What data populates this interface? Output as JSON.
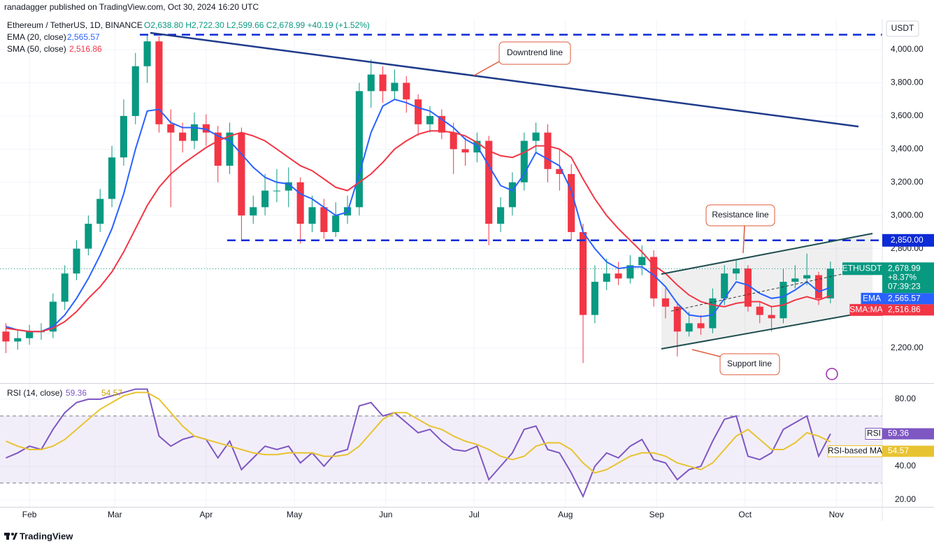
{
  "header": {
    "publisher": "ranadagger published on TradingView.com, Oct 30, 2024 16:20 UTC",
    "brand": "TradingView"
  },
  "chart_data": [
    {
      "type": "candlestick",
      "title": "Ethereum / TetherUS, 1D, BINANCE",
      "ohlc_label": "O2,638.80 H2,722.30 L2,599.66 C2,678.99 +40.19 (+1.52%)",
      "currency": "USDT",
      "categories": [
        null,
        null,
        null,
        null,
        null,
        null,
        null,
        null,
        null,
        null,
        null,
        null,
        null,
        null,
        null,
        null,
        null,
        null,
        null,
        null,
        null,
        null,
        null,
        null,
        null,
        null,
        null,
        null,
        null,
        null,
        null,
        null,
        null,
        null,
        null,
        null,
        null,
        null,
        null,
        null,
        null,
        null,
        null,
        null,
        null,
        null,
        null,
        null,
        null,
        null,
        null,
        null,
        null,
        null,
        null,
        null,
        null,
        null,
        null,
        null,
        null,
        null,
        null,
        null,
        null,
        null,
        null,
        null,
        null,
        null,
        null
      ],
      "open": [
        2300,
        2240,
        2260,
        2300,
        2300,
        2480,
        2650,
        2800,
        2950,
        3100,
        3350,
        3600,
        3900,
        4050,
        3550,
        3500,
        3450,
        3550,
        3500,
        3300,
        3500,
        3000,
        3050,
        3150,
        3150,
        3200,
        2950,
        3050,
        2900,
        3000,
        3050,
        3750,
        3850,
        3750,
        3800,
        3700,
        3550,
        3600,
        3500,
        3400,
        3380,
        3450,
        2950,
        3050,
        3200,
        3450,
        3500,
        3280,
        3250,
        2900,
        2400,
        2600,
        2650,
        2620,
        2700,
        2750,
        2500,
        2450,
        2300,
        2350,
        2320,
        2500,
        2650,
        2680,
        2450,
        2400,
        2380,
        2600,
        2620,
        2640,
        2500
      ],
      "high": [
        2350,
        2310,
        2340,
        2350,
        2530,
        2700,
        2850,
        3000,
        3160,
        3420,
        3700,
        3980,
        4090,
        4080,
        3640,
        3560,
        3620,
        3610,
        3540,
        3560,
        3530,
        3120,
        3250,
        3280,
        3290,
        3230,
        3120,
        3100,
        3080,
        3120,
        3800,
        3940,
        3900,
        3880,
        3840,
        3730,
        3660,
        3640,
        3560,
        3470,
        3500,
        3480,
        3110,
        3260,
        3500,
        3560,
        3550,
        3400,
        3310,
        2950,
        2700,
        2740,
        2720,
        2760,
        2820,
        2790,
        2560,
        2480,
        2420,
        2400,
        2560,
        2700,
        2730,
        2700,
        2480,
        2450,
        2680,
        2700,
        2770,
        2660,
        2722.3
      ],
      "low": [
        2170,
        2190,
        2220,
        2250,
        2260,
        2430,
        2610,
        2760,
        2900,
        3050,
        3300,
        3550,
        3800,
        3500,
        3050,
        3380,
        3400,
        3420,
        3200,
        3250,
        2850,
        2950,
        3000,
        3080,
        3050,
        2830,
        2900,
        2860,
        2870,
        2950,
        3000,
        3650,
        3680,
        3700,
        3620,
        3480,
        3500,
        3460,
        3250,
        3300,
        3320,
        2820,
        2900,
        3000,
        3150,
        3380,
        3200,
        3150,
        2850,
        2110,
        2350,
        2550,
        2580,
        2590,
        2640,
        2450,
        2380,
        2150,
        2270,
        2280,
        2290,
        2460,
        2610,
        2420,
        2350,
        2300,
        2350,
        2560,
        2580,
        2460,
        2470
      ],
      "close": [
        2240,
        2260,
        2300,
        2300,
        2480,
        2650,
        2800,
        2950,
        3100,
        3350,
        3600,
        3900,
        4050,
        3550,
        3500,
        3450,
        3550,
        3500,
        3300,
        3500,
        3000,
        3050,
        3150,
        3150,
        3200,
        2950,
        3050,
        2900,
        3000,
        3050,
        3750,
        3850,
        3750,
        3800,
        3700,
        3550,
        3600,
        3500,
        3400,
        3380,
        3450,
        2950,
        3050,
        3200,
        3450,
        3500,
        3280,
        3250,
        2900,
        2400,
        2600,
        2650,
        2620,
        2700,
        2750,
        2500,
        2450,
        2300,
        2350,
        2320,
        2500,
        2650,
        2680,
        2450,
        2400,
        2380,
        2600,
        2620,
        2640,
        2500,
        2678.99
      ],
      "up_color": "#089981",
      "down_color": "#f23645",
      "last": {
        "name": "ETHUSDT",
        "label": "2,678.99",
        "change": "+8.37%",
        "countdown": "07:39:23"
      },
      "series": [
        {
          "name": "EMA (20, close)",
          "tag": "EMA",
          "label": "2,565.57",
          "color": "#2962ff",
          "values": [
            2330,
            2310,
            2300,
            2300,
            2330,
            2400,
            2500,
            2620,
            2760,
            2920,
            3130,
            3400,
            3630,
            3640,
            3560,
            3530,
            3530,
            3520,
            3480,
            3450,
            3370,
            3290,
            3230,
            3200,
            3190,
            3130,
            3100,
            3050,
            3000,
            3020,
            3250,
            3500,
            3660,
            3700,
            3680,
            3650,
            3630,
            3580,
            3530,
            3460,
            3420,
            3300,
            3180,
            3150,
            3250,
            3380,
            3340,
            3300,
            3150,
            2900,
            2800,
            2720,
            2680,
            2690,
            2690,
            2640,
            2570,
            2470,
            2400,
            2390,
            2400,
            2500,
            2600,
            2580,
            2530,
            2500,
            2510,
            2550,
            2600,
            2540,
            2565.57
          ]
        },
        {
          "name": "SMA (50, close)",
          "tag": "SMA:MA",
          "label": "2,516.86",
          "color": "#f23645",
          "values": [
            2320,
            2310,
            2300,
            2300,
            2320,
            2360,
            2420,
            2500,
            2570,
            2660,
            2780,
            2920,
            3060,
            3170,
            3250,
            3310,
            3360,
            3410,
            3450,
            3480,
            3500,
            3480,
            3450,
            3400,
            3350,
            3300,
            3270,
            3220,
            3170,
            3150,
            3200,
            3250,
            3320,
            3400,
            3450,
            3490,
            3510,
            3510,
            3500,
            3480,
            3440,
            3390,
            3360,
            3350,
            3380,
            3420,
            3420,
            3400,
            3350,
            3220,
            3100,
            3000,
            2920,
            2850,
            2780,
            2700,
            2650,
            2580,
            2520,
            2480,
            2460,
            2450,
            2470,
            2480,
            2480,
            2450,
            2460,
            2490,
            2510,
            2490,
            2516.86
          ]
        }
      ],
      "ylim": [
        1989,
        4173
      ],
      "yticks": [
        {
          "value": 2200,
          "label": "2,200.00"
        },
        {
          "value": 2800,
          "label": "2,800.00"
        },
        {
          "value": 3000,
          "label": "3,000.00"
        },
        {
          "value": 3200,
          "label": "3,200.00"
        },
        {
          "value": 3400,
          "label": "3,400.00"
        },
        {
          "value": 3600,
          "label": "3,600.00"
        },
        {
          "value": 3800,
          "label": "3,800.00"
        },
        {
          "value": 4000,
          "label": "4,000.00"
        }
      ],
      "xlim": [
        -0.5,
        74.4
      ],
      "xticks": [
        {
          "value": 2,
          "label": "Feb"
        },
        {
          "value": 9.25,
          "label": "Mar"
        },
        {
          "value": 17,
          "label": "Apr"
        },
        {
          "value": 24.5,
          "label": "May"
        },
        {
          "value": 32.25,
          "label": "Jun"
        },
        {
          "value": 39.75,
          "label": "Jul"
        },
        {
          "value": 47.5,
          "label": "Aug"
        },
        {
          "value": 55.25,
          "label": "Sep"
        },
        {
          "value": 62.75,
          "label": "Oct"
        },
        {
          "value": 70.5,
          "label": "Nov"
        }
      ],
      "hlines": [
        4090,
        {
          "value": 2850,
          "label": "2,850.00"
        }
      ],
      "annotations": [
        "Downtrend line",
        "Resistance line",
        "Support line"
      ]
    },
    {
      "type": "line",
      "title": "RSI (14, close)",
      "series": [
        {
          "name": "RSI",
          "color": "#7e57c2",
          "values": [
            45,
            48,
            52,
            50,
            62,
            72,
            78,
            80,
            80,
            82,
            84,
            86,
            86,
            58,
            52,
            56,
            58,
            56,
            45,
            55,
            38,
            45,
            52,
            50,
            52,
            42,
            48,
            40,
            48,
            50,
            76,
            78,
            70,
            72,
            66,
            60,
            62,
            55,
            50,
            49,
            52,
            32,
            40,
            48,
            62,
            64,
            50,
            48,
            36,
            22,
            40,
            48,
            45,
            52,
            56,
            44,
            42,
            32,
            38,
            40,
            55,
            68,
            70,
            46,
            44,
            48,
            62,
            66,
            70,
            46,
            59.36
          ]
        },
        {
          "name": "RSI-based MA",
          "color": "#e8c331",
          "values": [
            55,
            52,
            50,
            50,
            52,
            56,
            62,
            68,
            74,
            78,
            82,
            84,
            84,
            80,
            72,
            64,
            58,
            56,
            54,
            52,
            50,
            48,
            47,
            47,
            48,
            48,
            48,
            46,
            46,
            47,
            52,
            60,
            68,
            72,
            72,
            68,
            64,
            62,
            58,
            55,
            53,
            50,
            46,
            44,
            46,
            52,
            54,
            54,
            50,
            42,
            36,
            38,
            42,
            46,
            48,
            48,
            46,
            42,
            40,
            38,
            42,
            50,
            58,
            62,
            56,
            50,
            50,
            54,
            60,
            58,
            54.57
          ]
        }
      ],
      "ylim": [
        15.8,
        88.75
      ],
      "yticks": [
        {
          "value": 80,
          "label": "80.00"
        },
        {
          "value": 40,
          "label": "40.00"
        },
        {
          "value": 20,
          "label": "20.00"
        }
      ],
      "band": [
        30,
        70
      ]
    }
  ]
}
